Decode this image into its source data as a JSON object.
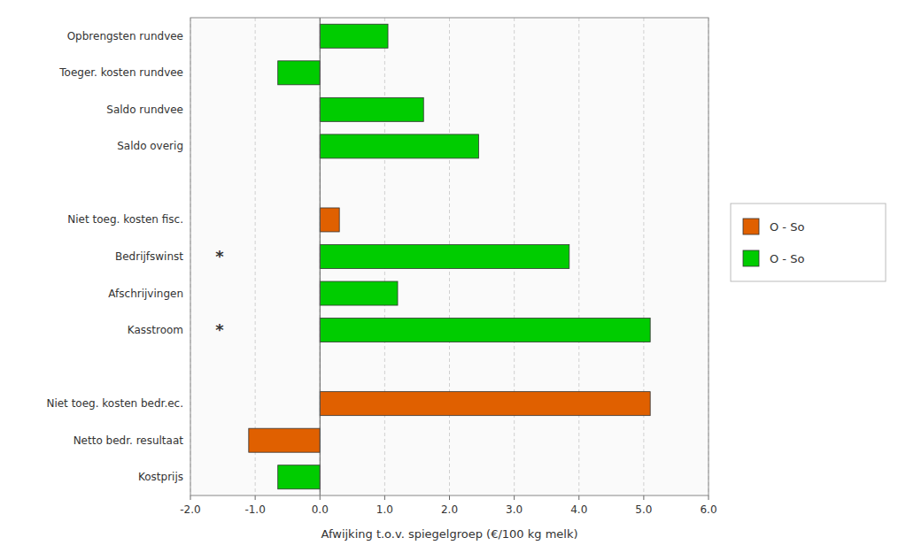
{
  "chart_data": {
    "type": "bar",
    "orientation": "horizontal",
    "categories": [
      "Kostprijs",
      "Netto bedr. resultaat",
      "Niet toeg. kosten bedr.ec.",
      null,
      "Kasstroom",
      "Afschrijvingen",
      "Bedrijfswinst",
      "Niet toeg. kosten fisc.",
      null,
      "Saldo overig",
      "Saldo rundvee",
      "Toeger. kosten rundvee",
      "Opbrengsten rundvee"
    ],
    "values": [
      -0.65,
      -1.1,
      5.1,
      null,
      5.1,
      1.2,
      3.85,
      0.3,
      null,
      2.45,
      1.6,
      -0.65,
      1.05
    ],
    "colors": [
      "#00cc00",
      "#e06000",
      "#e06000",
      null,
      "#00cc00",
      "#00cc00",
      "#00cc00",
      "#e06000",
      null,
      "#00cc00",
      "#00cc00",
      "#00cc00",
      "#00cc00"
    ],
    "xlim": [
      -2.0,
      6.0
    ],
    "xticks": [
      {
        "value": -2.0,
        "label": "-2.0"
      },
      {
        "value": -1.0,
        "label": "-1.0"
      },
      {
        "value": 0.0,
        "label": "0.0"
      },
      {
        "value": 1.0,
        "label": "1.0"
      },
      {
        "value": 2.0,
        "label": "2.0"
      },
      {
        "value": 3.0,
        "label": "3.0"
      },
      {
        "value": 4.0,
        "label": "4.0"
      },
      {
        "value": 5.0,
        "label": "5.0"
      },
      {
        "value": 6.0,
        "label": "6.0"
      }
    ],
    "xlabel": "Afwijking t.o.v. spiegelgroep (€/100 kg melk)",
    "grid": true,
    "annotations": [
      {
        "text": "*",
        "x": -1.55,
        "y": "Kasstroom"
      },
      {
        "text": "*",
        "x": -1.55,
        "y": "Bedrijfswinst"
      }
    ],
    "legend": "right",
    "legend_entries": [
      {
        "name": "O - So",
        "color": "#e06000"
      },
      {
        "name": "O - So",
        "color": "#00cc00"
      }
    ]
  }
}
